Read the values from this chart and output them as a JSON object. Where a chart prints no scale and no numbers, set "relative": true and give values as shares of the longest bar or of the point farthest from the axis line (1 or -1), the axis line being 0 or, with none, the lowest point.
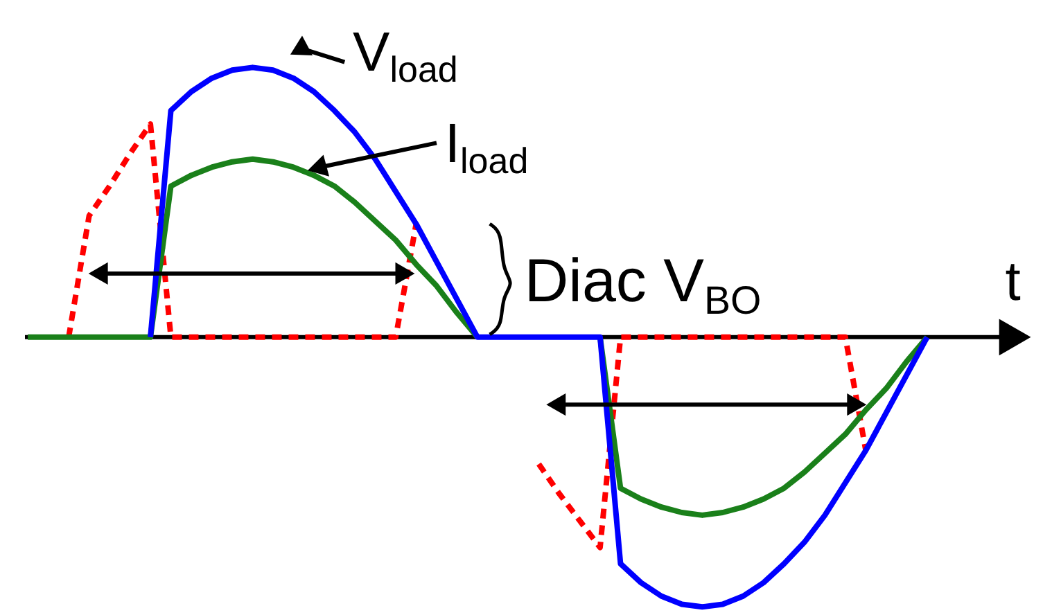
{
  "chart_data": {
    "type": "line",
    "relative": true,
    "xlabel": "t",
    "categories": [
      null,
      null,
      null,
      null,
      null,
      null,
      null,
      null,
      null,
      null,
      null,
      null,
      null,
      null,
      null,
      null,
      null,
      null,
      null,
      null,
      null,
      null,
      null,
      null,
      null,
      null,
      null,
      null,
      null,
      null,
      null,
      null,
      null,
      null,
      null,
      null,
      null,
      null,
      null,
      null,
      null,
      null,
      null,
      null,
      null
    ],
    "series": [
      {
        "name": "V$_{load}$",
        "color": "#0000ff",
        "line_style": "solid",
        "values": [
          null,
          null,
          null,
          null,
          null,
          null,
          0,
          0.84,
          0.91,
          0.96,
          0.99,
          1,
          0.99,
          0.96,
          0.91,
          0.84,
          0.76,
          0.66,
          0.54,
          0.42,
          0.28,
          0.14,
          0,
          0,
          0,
          0,
          0,
          0,
          0,
          -0.84,
          -0.91,
          -0.96,
          -0.99,
          -1,
          -0.99,
          -0.96,
          -0.91,
          -0.84,
          -0.76,
          -0.66,
          -0.54,
          -0.42,
          -0.28,
          -0.14,
          0
        ]
      },
      {
        "name": "I$_{load}$",
        "color": "#1a801a",
        "line_style": "solid",
        "values": [
          0,
          0,
          0,
          0,
          0,
          0,
          0,
          0.56,
          0.6,
          0.63,
          0.65,
          0.66,
          0.65,
          0.63,
          0.6,
          0.56,
          0.5,
          0.43,
          0.36,
          0.27,
          0.19,
          0.09,
          0,
          null,
          null,
          null,
          null,
          null,
          0,
          -0.56,
          -0.6,
          -0.63,
          -0.65,
          -0.66,
          -0.65,
          -0.63,
          -0.6,
          -0.56,
          -0.5,
          -0.43,
          -0.36,
          -0.27,
          -0.19,
          -0.09,
          0
        ]
      },
      {
        "color": "#ff0000",
        "line_style": "dashed",
        "values": [
          null,
          null,
          0,
          0.45,
          0.56,
          0.68,
          0.79,
          0,
          0,
          0,
          0,
          0,
          0,
          0,
          0,
          0,
          0,
          0,
          0,
          0.42,
          null,
          null,
          null,
          null,
          null,
          -0.47,
          -0.58,
          -0.68,
          -0.78,
          0,
          0,
          0,
          0,
          0,
          0,
          0,
          0,
          0,
          0,
          0,
          0,
          -0.42,
          null,
          null,
          null
        ]
      }
    ],
    "annotations": [
      "Diac V$_{BO}$"
    ]
  }
}
